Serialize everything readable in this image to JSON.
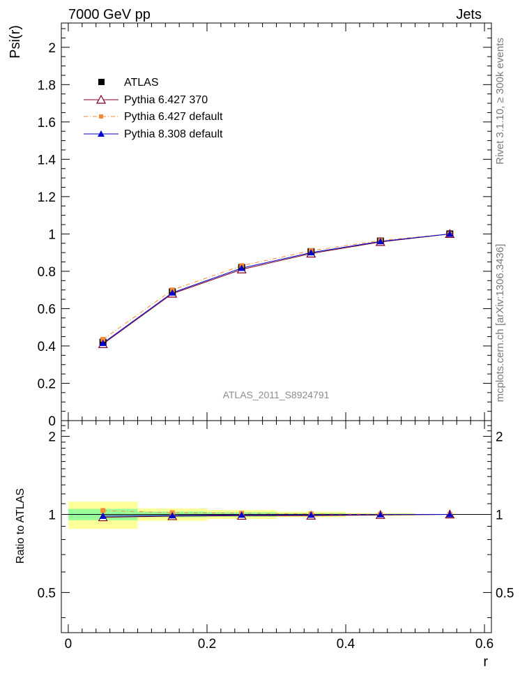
{
  "header": {
    "left": "7000 GeV pp",
    "right": "Jets"
  },
  "side_labels": {
    "rivet": "Rivet 3.1.10, ≥ 300k events",
    "mcplots": "mcplots.cern.ch [arXiv:1306.3436]"
  },
  "chart_data": [
    {
      "type": "line",
      "panel": "main",
      "title": "",
      "xlabel": "r",
      "ylabel": "Psi(r)",
      "xlim": [
        -0.01,
        0.61
      ],
      "ylim": [
        0,
        2.13
      ],
      "x_ticks": [
        "0",
        "0.2",
        "0.4",
        "0.6"
      ],
      "y_ticks": [
        "0",
        "0.2",
        "0.4",
        "0.6",
        "0.8",
        "1",
        "1.2",
        "1.4",
        "1.6",
        "1.8",
        "2"
      ],
      "annotation": "ATLAS_2011_S8924791",
      "legend_position": "top-left",
      "x": [
        0.05,
        0.15,
        0.25,
        0.35,
        0.45,
        0.55
      ],
      "series": [
        {
          "name": "ATLAS",
          "role": "data",
          "marker": "square",
          "color": "#000000",
          "values": [
            0.42,
            0.69,
            0.82,
            0.905,
            0.962,
            1.0
          ]
        },
        {
          "name": "Pythia 6.427 370",
          "marker": "open-triangle",
          "color": "#800020",
          "values": [
            0.41,
            0.68,
            0.81,
            0.895,
            0.957,
            1.0
          ]
        },
        {
          "name": "Pythia 6.427 default",
          "marker": "filled-square-small",
          "dash": "dash-dot",
          "color": "#f58a33",
          "values": [
            0.435,
            0.7,
            0.83,
            0.91,
            0.965,
            1.0
          ]
        },
        {
          "name": "Pythia 8.308 default",
          "marker": "filled-triangle",
          "color": "#0000d0",
          "values": [
            0.415,
            0.685,
            0.817,
            0.9,
            0.96,
            1.0
          ]
        }
      ]
    },
    {
      "type": "line",
      "panel": "ratio",
      "xlabel": "r",
      "ylabel": "Ratio to ATLAS",
      "xlim": [
        -0.01,
        0.61
      ],
      "ylim": [
        0.35,
        2.3
      ],
      "y_ticks": [
        "0.5",
        "1",
        "2"
      ],
      "x": [
        0.05,
        0.15,
        0.25,
        0.35,
        0.45,
        0.55
      ],
      "bands": {
        "bin_edges": [
          0.0,
          0.1,
          0.2,
          0.3,
          0.4,
          0.5,
          0.6
        ],
        "yellow_halfwidth": [
          0.12,
          0.055,
          0.04,
          0.025,
          0.012,
          0.0
        ],
        "green_halfwidth": [
          0.05,
          0.025,
          0.02,
          0.012,
          0.006,
          0.0
        ]
      },
      "series": [
        {
          "name": "Pythia 6.427 370",
          "color": "#800020",
          "values": [
            0.975,
            0.985,
            0.988,
            0.989,
            0.995,
            1.0
          ]
        },
        {
          "name": "Pythia 6.427 default",
          "color": "#f58a33",
          "values": [
            1.035,
            1.015,
            1.01,
            1.005,
            1.002,
            1.0
          ]
        },
        {
          "name": "Pythia 8.308 default",
          "color": "#0000d0",
          "values": [
            0.985,
            0.99,
            0.995,
            0.995,
            0.998,
            1.0
          ]
        }
      ]
    }
  ]
}
